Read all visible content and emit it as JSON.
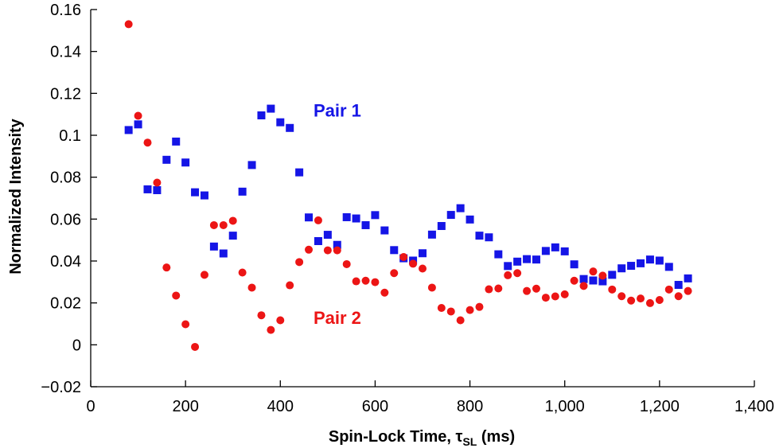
{
  "chart_data": {
    "type": "scatter",
    "xlabel": "Spin-Lock Time, τSL (ms)",
    "xlabel_parts": {
      "pre": "Spin-Lock Time, τ",
      "sub": "SL",
      "post": " (ms)"
    },
    "ylabel": "Normalized Intensity",
    "xlim": [
      0,
      1400
    ],
    "ylim": [
      -0.02,
      0.16
    ],
    "x_ticks": [
      0,
      200,
      400,
      600,
      800,
      1000,
      1200,
      1400
    ],
    "x_tick_labels": [
      "0",
      "200",
      "400",
      "600",
      "800",
      "1,000",
      "1,200",
      "1,400"
    ],
    "y_ticks": [
      -0.02,
      0,
      0.02,
      0.04,
      0.06,
      0.08,
      0.1,
      0.12,
      0.14,
      0.16
    ],
    "y_tick_labels": [
      "−0.02",
      "0",
      "0.02",
      "0.04",
      "0.06",
      "0.08",
      "0.1",
      "0.12",
      "0.14",
      "0.16"
    ],
    "grid": false,
    "annotations": [
      {
        "text": "Pair 1",
        "x": 470,
        "y": 0.109,
        "color": "#1515e6"
      },
      {
        "text": "Pair 2",
        "x": 470,
        "y": 0.01,
        "color": "#ec1515"
      }
    ],
    "series": [
      {
        "marker": "square",
        "color": "#1515e6",
        "x": [
          80,
          100,
          120,
          140,
          160,
          180,
          200,
          220,
          240,
          260,
          280,
          300,
          320,
          340,
          360,
          380,
          400,
          420,
          440,
          460,
          480,
          500,
          520,
          540,
          560,
          580,
          600,
          620,
          640,
          660,
          680,
          700,
          720,
          740,
          760,
          780,
          800,
          820,
          840,
          860,
          880,
          900,
          920,
          940,
          960,
          980,
          1000,
          1020,
          1040,
          1060,
          1080,
          1100,
          1120,
          1140,
          1160,
          1180,
          1200,
          1220,
          1240,
          1260
        ],
        "y": [
          0.1025,
          0.1052,
          0.0742,
          0.0738,
          0.0883,
          0.097,
          0.087,
          0.0728,
          0.0713,
          0.0469,
          0.0436,
          0.0521,
          0.0731,
          0.0858,
          0.1095,
          0.1127,
          0.1062,
          0.1035,
          0.0823,
          0.0608,
          0.0495,
          0.0525,
          0.0477,
          0.0609,
          0.0603,
          0.0571,
          0.0619,
          0.0546,
          0.0452,
          0.0413,
          0.0402,
          0.0437,
          0.0526,
          0.0567,
          0.062,
          0.0652,
          0.0598,
          0.0521,
          0.0513,
          0.0432,
          0.0376,
          0.0397,
          0.0409,
          0.0407,
          0.0448,
          0.0465,
          0.0446,
          0.0384,
          0.0314,
          0.0307,
          0.0303,
          0.0334,
          0.0365,
          0.0377,
          0.0389,
          0.0407,
          0.0402,
          0.0372,
          0.0286,
          0.0317
        ]
      },
      {
        "marker": "circle",
        "color": "#ec1515",
        "x": [
          80,
          100,
          120,
          140,
          160,
          180,
          200,
          220,
          240,
          260,
          280,
          300,
          320,
          340,
          360,
          380,
          400,
          420,
          440,
          460,
          480,
          500,
          520,
          540,
          560,
          580,
          600,
          620,
          640,
          660,
          680,
          700,
          720,
          740,
          760,
          780,
          800,
          820,
          840,
          860,
          880,
          900,
          920,
          940,
          960,
          980,
          1000,
          1020,
          1040,
          1060,
          1080,
          1100,
          1120,
          1140,
          1160,
          1180,
          1200,
          1220,
          1240,
          1260
        ],
        "y": [
          0.153,
          0.1093,
          0.0965,
          0.0774,
          0.0369,
          0.0235,
          0.0098,
          -0.001,
          0.0334,
          0.0571,
          0.0571,
          0.0592,
          0.0345,
          0.0273,
          0.0141,
          0.0071,
          0.0117,
          0.0284,
          0.0395,
          0.0454,
          0.0594,
          0.0451,
          0.0451,
          0.0385,
          0.0303,
          0.0306,
          0.0299,
          0.0249,
          0.0342,
          0.0419,
          0.0387,
          0.0364,
          0.0273,
          0.0176,
          0.0159,
          0.0117,
          0.0166,
          0.0181,
          0.0265,
          0.0269,
          0.0332,
          0.0342,
          0.0257,
          0.0268,
          0.0225,
          0.0231,
          0.0241,
          0.0306,
          0.0281,
          0.035,
          0.033,
          0.0264,
          0.0232,
          0.0211,
          0.0221,
          0.0199,
          0.0214,
          0.0264,
          0.0232,
          0.0257
        ]
      }
    ]
  }
}
